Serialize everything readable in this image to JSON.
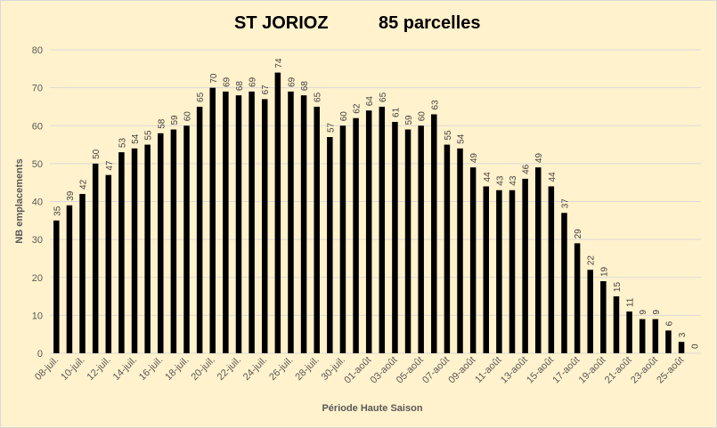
{
  "chart_data": {
    "type": "bar",
    "title": "ST JORIOZ",
    "subtitle": "85 parcelles",
    "xlabel": "Période Haute Saison",
    "ylabel": "NB emplacements",
    "ylim": [
      0,
      80
    ],
    "yticks": [
      0,
      10,
      20,
      30,
      40,
      50,
      60,
      70,
      80
    ],
    "grid": true,
    "bar_color": "#000000",
    "tick_labels": [
      "08-juil.",
      "10-juil.",
      "12-juil.",
      "14-juil.",
      "16-juil.",
      "18-juil.",
      "20-juil.",
      "22-juil.",
      "24-juil.",
      "26-juil.",
      "28-juil.",
      "30-juil.",
      "01-août",
      "03-août",
      "05-août",
      "07-août",
      "09-août",
      "11-août",
      "13-août",
      "15-août",
      "17-août",
      "19-août",
      "21-août",
      "23-août",
      "25-août"
    ],
    "values": [
      35,
      39,
      42,
      50,
      47,
      53,
      54,
      55,
      58,
      59,
      60,
      65,
      70,
      69,
      68,
      69,
      67,
      74,
      69,
      68,
      65,
      57,
      60,
      62,
      64,
      65,
      61,
      59,
      60,
      63,
      55,
      54,
      49,
      44,
      43,
      43,
      46,
      49,
      44,
      37,
      29,
      22,
      19,
      15,
      11,
      9,
      9,
      6,
      3,
      0
    ]
  }
}
